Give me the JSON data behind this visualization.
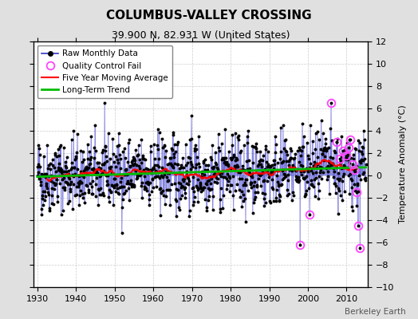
{
  "title": "COLUMBUS-VALLEY CROSSING",
  "subtitle": "39.900 N, 82.931 W (United States)",
  "ylabel": "Temperature Anomaly (°C)",
  "credit": "Berkeley Earth",
  "xlim": [
    1929,
    2015.5
  ],
  "ylim": [
    -10,
    12
  ],
  "yticks": [
    -10,
    -8,
    -6,
    -4,
    -2,
    0,
    2,
    4,
    6,
    8,
    10,
    12
  ],
  "xticks": [
    1930,
    1940,
    1950,
    1960,
    1970,
    1980,
    1990,
    2000,
    2010
  ],
  "raw_color": "#3333cc",
  "dot_color": "#000000",
  "qc_color": "#ff44ff",
  "moving_avg_color": "#ff0000",
  "trend_color": "#00bb00",
  "background_color": "#e0e0e0",
  "plot_bg_color": "#ffffff",
  "grid_color": "#cccccc",
  "seed": 42,
  "n_months": 1020,
  "start_year": 1930
}
